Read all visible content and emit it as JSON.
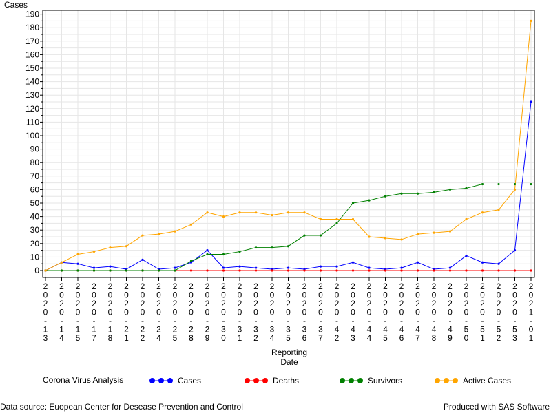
{
  "chart_data": {
    "type": "line",
    "title": "",
    "xlabel": "Reporting Date",
    "ylabel": "Cases",
    "ylim": [
      0,
      190
    ],
    "yticks": [
      0,
      10,
      20,
      30,
      40,
      50,
      60,
      70,
      80,
      90,
      100,
      110,
      120,
      130,
      140,
      150,
      160,
      170,
      180,
      190
    ],
    "grid": true,
    "categories": [
      "2020-13",
      "2020-14",
      "2020-15",
      "2020-17",
      "2020-18",
      "2020-21",
      "2020-22",
      "2020-24",
      "2020-25",
      "2020-28",
      "2020-29",
      "2020-30",
      "2020-31",
      "2020-32",
      "2020-34",
      "2020-35",
      "2020-36",
      "2020-37",
      "2020-42",
      "2020-43",
      "2020-44",
      "2020-45",
      "2020-46",
      "2020-47",
      "2020-48",
      "2020-49",
      "2020-50",
      "2020-51",
      "2020-52",
      "2020-53",
      "2021-01"
    ],
    "legend_title": "Corona Virus Analysis",
    "series": [
      {
        "name": "Cases",
        "color": "#0000ff",
        "values": [
          0,
          6,
          5,
          2,
          3,
          1,
          8,
          1,
          2,
          6,
          15,
          2,
          3,
          2,
          1,
          2,
          1,
          3,
          3,
          6,
          2,
          1,
          2,
          6,
          1,
          2,
          11,
          6,
          5,
          15,
          125
        ]
      },
      {
        "name": "Deaths",
        "color": "#ff0000",
        "values": [
          0,
          0,
          0,
          0,
          0,
          0,
          0,
          0,
          0,
          0,
          0,
          0,
          0,
          0,
          0,
          0,
          0,
          0,
          0,
          0,
          0,
          0,
          0,
          0,
          0,
          0,
          0,
          0,
          0,
          0,
          0
        ]
      },
      {
        "name": "Survivors",
        "color": "#008000",
        "values": [
          0,
          0,
          0,
          0,
          0,
          0,
          0,
          0,
          0,
          7,
          12,
          12,
          14,
          17,
          17,
          18,
          26,
          26,
          35,
          50,
          52,
          55,
          57,
          57,
          58,
          60,
          61,
          64,
          64,
          64,
          64
        ]
      },
      {
        "name": "Active Cases",
        "color": "#ffa500",
        "values": [
          0,
          6,
          12,
          14,
          17,
          18,
          26,
          27,
          29,
          34,
          43,
          40,
          43,
          43,
          41,
          43,
          43,
          38,
          38,
          38,
          25,
          24,
          23,
          27,
          28,
          29,
          38,
          43,
          45,
          60,
          185
        ]
      }
    ]
  },
  "footer": {
    "source": "Data source: Euopean Center for Desease Prevention and Control",
    "produced": "Produced with SAS Software"
  }
}
